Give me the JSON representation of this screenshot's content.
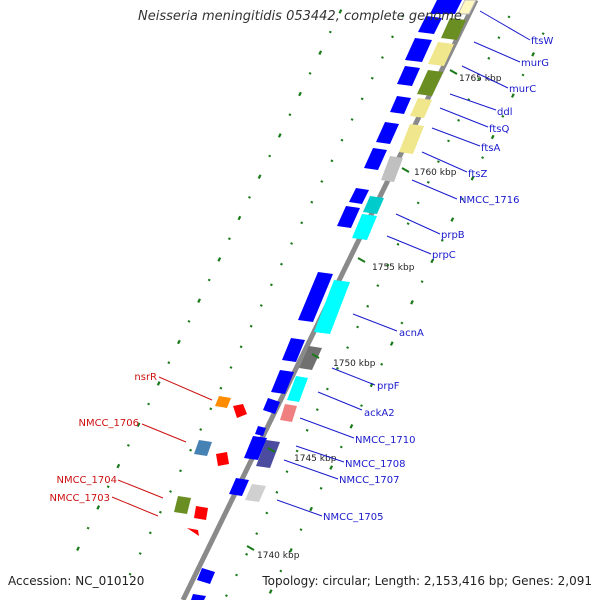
{
  "title": "Neisseria meningitidis 053442, complete genome",
  "footer": {
    "accession": "Accession: NC_010120",
    "topology": "Topology: circular; Length: 2,153,416 bp; Genes: 2,091"
  },
  "colors": {
    "blue_gene": "#0000ff",
    "blue_label": "#1a1acc",
    "red_gene": "#ff0000",
    "red_label": "#cc1111",
    "backbone": "#8a8a8a",
    "tick_green": "#1a7a1a",
    "olive": "#6b8e23",
    "khaki": "#f0e68c",
    "cyan": "#00ffff",
    "grey": "#b5b5b5"
  },
  "kbp_ticks": [
    "1765 kbp",
    "1760 kbp",
    "1755 kbp",
    "1750 kbp",
    "1745 kbp",
    "1740 kbp"
  ],
  "gene_labels": [
    {
      "name": "ftsW",
      "side": "right"
    },
    {
      "name": "murG",
      "side": "right"
    },
    {
      "name": "murC",
      "side": "right"
    },
    {
      "name": "ddl",
      "side": "right"
    },
    {
      "name": "ftsQ",
      "side": "right"
    },
    {
      "name": "ftsA",
      "side": "right"
    },
    {
      "name": "ftsZ",
      "side": "right"
    },
    {
      "name": "NMCC_1716",
      "side": "right"
    },
    {
      "name": "prpB",
      "side": "right"
    },
    {
      "name": "prpC",
      "side": "right"
    },
    {
      "name": "acnA",
      "side": "right"
    },
    {
      "name": "prpF",
      "side": "right"
    },
    {
      "name": "ackA2",
      "side": "right"
    },
    {
      "name": "NMCC_1710",
      "side": "right"
    },
    {
      "name": "NMCC_1708",
      "side": "right"
    },
    {
      "name": "NMCC_1707",
      "side": "right"
    },
    {
      "name": "NMCC_1705",
      "side": "right"
    },
    {
      "name": "nsrR",
      "side": "left"
    },
    {
      "name": "NMCC_1706",
      "side": "left"
    },
    {
      "name": "NMCC_1704",
      "side": "left"
    },
    {
      "name": "NMCC_1703",
      "side": "left"
    }
  ]
}
